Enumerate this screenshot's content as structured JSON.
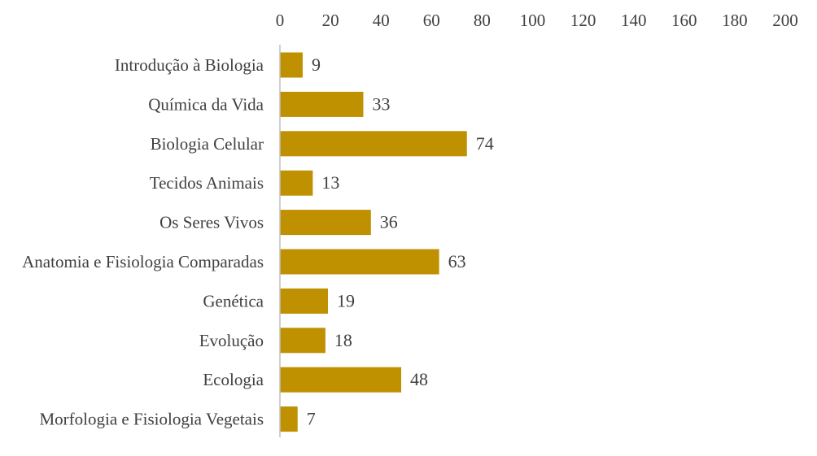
{
  "chart_data": {
    "type": "bar",
    "orientation": "horizontal",
    "title": "",
    "xlabel": "",
    "ylabel": "",
    "categories": [
      "Introdução à Biologia",
      "Química da Vida",
      "Biologia Celular",
      "Tecidos Animais",
      "Os Seres Vivos",
      "Anatomia e Fisiologia Comparadas",
      "Genética",
      "Evolução",
      "Ecologia",
      "Morfologia e Fisiologia Vegetais"
    ],
    "values": [
      9,
      33,
      74,
      13,
      36,
      63,
      19,
      18,
      48,
      7
    ],
    "xlim": [
      0,
      200
    ],
    "xticks": [
      0,
      20,
      40,
      60,
      80,
      100,
      120,
      140,
      160,
      180,
      200
    ],
    "x_axis_position": "top",
    "grid": false,
    "legend": "none",
    "data_labels": true,
    "colors": {
      "bar": "#BF9000",
      "axis": "#BFBFBF",
      "text": "#404040"
    }
  }
}
